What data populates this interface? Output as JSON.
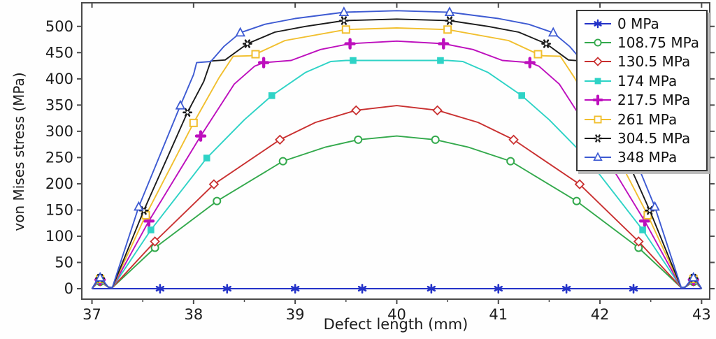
{
  "chart_data": {
    "type": "line",
    "title": "",
    "xlabel": "Defect length (mm)",
    "ylabel": "von Mises stress (MPa)",
    "xlim": [
      36.9,
      43.08
    ],
    "ylim": [
      -20,
      545
    ],
    "x_ticks": [
      37,
      38,
      39,
      40,
      41,
      42,
      43
    ],
    "x_minor_ticks": [
      37.5,
      38.5,
      39.5,
      40.5,
      41.5,
      42.5
    ],
    "y_ticks": [
      0,
      50,
      100,
      150,
      200,
      250,
      300,
      350,
      400,
      450,
      500
    ],
    "grid": false,
    "legend_position": "upper-right",
    "axis_color": "#4a4a4a",
    "series": [
      {
        "name": "0 MPa",
        "color": "#2433c8",
        "marker": "asterisk",
        "line": [
          [
            37.0,
            0
          ],
          [
            43.0,
            0
          ]
        ],
        "markers": [
          [
            37.67,
            0
          ],
          [
            38.33,
            0
          ],
          [
            39.0,
            0
          ],
          [
            39.66,
            0
          ],
          [
            40.34,
            0
          ],
          [
            41.0,
            0
          ],
          [
            41.67,
            0
          ],
          [
            42.33,
            0
          ]
        ]
      },
      {
        "name": "108.75 MPa",
        "color": "#33a94c",
        "marker": "circle-open",
        "line": [
          [
            37.0,
            0
          ],
          [
            37.04,
            8
          ],
          [
            37.08,
            13
          ],
          [
            37.12,
            8
          ],
          [
            37.16,
            3
          ],
          [
            37.2,
            2
          ],
          [
            37.62,
            78
          ],
          [
            38.23,
            167
          ],
          [
            38.88,
            243
          ],
          [
            39.3,
            270
          ],
          [
            39.62,
            284
          ],
          [
            40.0,
            291
          ],
          [
            40.38,
            284
          ],
          [
            40.7,
            270
          ],
          [
            41.12,
            243
          ],
          [
            41.77,
            167
          ],
          [
            42.38,
            78
          ],
          [
            42.8,
            2
          ],
          [
            42.84,
            3
          ],
          [
            42.88,
            8
          ],
          [
            42.92,
            13
          ],
          [
            42.96,
            8
          ],
          [
            43.0,
            0
          ]
        ],
        "markers": [
          [
            37.08,
            13
          ],
          [
            37.62,
            78
          ],
          [
            38.23,
            167
          ],
          [
            38.88,
            243
          ],
          [
            39.62,
            284
          ],
          [
            40.38,
            284
          ],
          [
            41.12,
            243
          ],
          [
            41.77,
            167
          ],
          [
            42.38,
            78
          ],
          [
            42.92,
            13
          ]
        ]
      },
      {
        "name": "130.5 MPa",
        "color": "#c93030",
        "marker": "diamond-open",
        "line": [
          [
            37.0,
            0
          ],
          [
            37.04,
            8.5
          ],
          [
            37.08,
            14
          ],
          [
            37.12,
            8.5
          ],
          [
            37.16,
            3
          ],
          [
            37.2,
            2
          ],
          [
            37.62,
            90
          ],
          [
            38.2,
            199
          ],
          [
            38.85,
            284
          ],
          [
            39.2,
            317
          ],
          [
            39.6,
            340
          ],
          [
            40.0,
            349
          ],
          [
            40.4,
            340
          ],
          [
            40.8,
            317
          ],
          [
            41.15,
            284
          ],
          [
            41.8,
            199
          ],
          [
            42.38,
            90
          ],
          [
            42.8,
            2
          ],
          [
            42.84,
            3
          ],
          [
            42.88,
            8.5
          ],
          [
            42.92,
            14
          ],
          [
            42.96,
            8.5
          ],
          [
            43.0,
            0
          ]
        ],
        "markers": [
          [
            37.08,
            14
          ],
          [
            37.62,
            90
          ],
          [
            38.2,
            199
          ],
          [
            38.85,
            284
          ],
          [
            39.6,
            340
          ],
          [
            40.4,
            340
          ],
          [
            41.15,
            284
          ],
          [
            41.8,
            199
          ],
          [
            42.38,
            90
          ],
          [
            42.92,
            14
          ]
        ]
      },
      {
        "name": "174 MPa",
        "color": "#2ed3c6",
        "marker": "square-filled",
        "line": [
          [
            37.0,
            0
          ],
          [
            37.04,
            9
          ],
          [
            37.08,
            15.5
          ],
          [
            37.12,
            9
          ],
          [
            37.16,
            3
          ],
          [
            37.2,
            2
          ],
          [
            37.58,
            112
          ],
          [
            38.13,
            249
          ],
          [
            38.5,
            322
          ],
          [
            38.77,
            368
          ],
          [
            39.1,
            412
          ],
          [
            39.35,
            433
          ],
          [
            39.5,
            435
          ],
          [
            40.5,
            435
          ],
          [
            40.65,
            433
          ],
          [
            40.9,
            412
          ],
          [
            41.23,
            368
          ],
          [
            41.5,
            322
          ],
          [
            41.87,
            249
          ],
          [
            42.42,
            112
          ],
          [
            42.8,
            2
          ],
          [
            42.84,
            3
          ],
          [
            42.88,
            9
          ],
          [
            42.92,
            15.5
          ],
          [
            42.96,
            9
          ],
          [
            43.0,
            0
          ]
        ],
        "markers": [
          [
            37.08,
            15.5
          ],
          [
            37.58,
            112
          ],
          [
            38.13,
            249
          ],
          [
            38.77,
            368
          ],
          [
            39.57,
            435
          ],
          [
            40.43,
            435
          ],
          [
            41.23,
            368
          ],
          [
            41.87,
            249
          ],
          [
            42.42,
            112
          ],
          [
            42.92,
            15.5
          ]
        ]
      },
      {
        "name": "217.5 MPa",
        "color": "#bd0fbd",
        "marker": "plus-filled",
        "line": [
          [
            37.0,
            0
          ],
          [
            37.04,
            10
          ],
          [
            37.08,
            17
          ],
          [
            37.12,
            10
          ],
          [
            37.16,
            3
          ],
          [
            37.2,
            2
          ],
          [
            37.56,
            129
          ],
          [
            38.07,
            291
          ],
          [
            38.4,
            390
          ],
          [
            38.6,
            424
          ],
          [
            38.69,
            431
          ],
          [
            38.96,
            435
          ],
          [
            39.25,
            456
          ],
          [
            39.54,
            467
          ],
          [
            40.0,
            472
          ],
          [
            40.46,
            467
          ],
          [
            40.75,
            456
          ],
          [
            41.04,
            435
          ],
          [
            41.31,
            431
          ],
          [
            41.4,
            424
          ],
          [
            41.6,
            390
          ],
          [
            41.93,
            291
          ],
          [
            42.44,
            129
          ],
          [
            42.8,
            2
          ],
          [
            42.84,
            3
          ],
          [
            42.88,
            10
          ],
          [
            42.92,
            17
          ],
          [
            42.96,
            10
          ],
          [
            43.0,
            0
          ]
        ],
        "markers": [
          [
            37.08,
            17
          ],
          [
            37.56,
            129
          ],
          [
            38.07,
            291
          ],
          [
            38.69,
            431
          ],
          [
            39.54,
            467
          ],
          [
            40.46,
            467
          ],
          [
            41.31,
            431
          ],
          [
            41.93,
            291
          ],
          [
            42.44,
            129
          ],
          [
            42.92,
            17
          ]
        ]
      },
      {
        "name": "261 MPa",
        "color": "#f1bf2e",
        "marker": "square-open",
        "line": [
          [
            37.0,
            0
          ],
          [
            37.04,
            11
          ],
          [
            37.08,
            18.5
          ],
          [
            37.12,
            11
          ],
          [
            37.16,
            3
          ],
          [
            37.2,
            2
          ],
          [
            37.53,
            140
          ],
          [
            38.0,
            316
          ],
          [
            38.25,
            402
          ],
          [
            38.39,
            443
          ],
          [
            38.56,
            444
          ],
          [
            38.61,
            447
          ],
          [
            38.9,
            473
          ],
          [
            39.5,
            494
          ],
          [
            40.0,
            497
          ],
          [
            40.5,
            494
          ],
          [
            41.1,
            473
          ],
          [
            41.39,
            447
          ],
          [
            41.44,
            444
          ],
          [
            41.61,
            443
          ],
          [
            41.75,
            402
          ],
          [
            42.0,
            316
          ],
          [
            42.47,
            140
          ],
          [
            42.8,
            2
          ],
          [
            42.84,
            3
          ],
          [
            42.88,
            11
          ],
          [
            42.92,
            18.5
          ],
          [
            42.96,
            11
          ],
          [
            43.0,
            0
          ]
        ],
        "markers": [
          [
            37.08,
            18.5
          ],
          [
            37.53,
            140
          ],
          [
            38.0,
            316
          ],
          [
            38.61,
            447
          ],
          [
            39.5,
            494
          ],
          [
            40.5,
            494
          ],
          [
            41.39,
            447
          ],
          [
            42.0,
            316
          ],
          [
            42.47,
            140
          ],
          [
            42.92,
            18.5
          ]
        ]
      },
      {
        "name": "304.5 MPa",
        "color": "#1b1b1b",
        "marker": "asterisk-dot",
        "line": [
          [
            37.0,
            0
          ],
          [
            37.04,
            12
          ],
          [
            37.08,
            20
          ],
          [
            37.12,
            12
          ],
          [
            37.16,
            3
          ],
          [
            37.2,
            2
          ],
          [
            37.51,
            149
          ],
          [
            37.94,
            336
          ],
          [
            38.1,
            395
          ],
          [
            38.17,
            434
          ],
          [
            38.31,
            436
          ],
          [
            38.53,
            467
          ],
          [
            38.8,
            489
          ],
          [
            39.1,
            500
          ],
          [
            39.48,
            511
          ],
          [
            40.0,
            514
          ],
          [
            40.52,
            511
          ],
          [
            40.9,
            500
          ],
          [
            41.2,
            489
          ],
          [
            41.47,
            467
          ],
          [
            41.69,
            436
          ],
          [
            41.83,
            434
          ],
          [
            41.9,
            395
          ],
          [
            42.06,
            336
          ],
          [
            42.49,
            149
          ],
          [
            42.8,
            2
          ],
          [
            42.84,
            3
          ],
          [
            42.88,
            12
          ],
          [
            42.92,
            20
          ],
          [
            42.96,
            12
          ],
          [
            43.0,
            0
          ]
        ],
        "markers": [
          [
            37.08,
            20
          ],
          [
            37.51,
            149
          ],
          [
            37.94,
            336
          ],
          [
            38.53,
            467
          ],
          [
            39.48,
            511
          ],
          [
            40.52,
            511
          ],
          [
            41.47,
            467
          ],
          [
            42.06,
            336
          ],
          [
            42.49,
            149
          ],
          [
            42.92,
            20
          ]
        ]
      },
      {
        "name": "348 MPa",
        "color": "#3d5ad2",
        "marker": "triangle-open",
        "line": [
          [
            37.0,
            0
          ],
          [
            37.04,
            13
          ],
          [
            37.08,
            21
          ],
          [
            37.12,
            13
          ],
          [
            37.16,
            3
          ],
          [
            37.2,
            2
          ],
          [
            37.46,
            156
          ],
          [
            37.87,
            349
          ],
          [
            38.0,
            408
          ],
          [
            38.03,
            431
          ],
          [
            38.17,
            433
          ],
          [
            38.3,
            462
          ],
          [
            38.46,
            488
          ],
          [
            38.7,
            504
          ],
          [
            39.0,
            515
          ],
          [
            39.48,
            527
          ],
          [
            40.0,
            530
          ],
          [
            40.52,
            527
          ],
          [
            41.0,
            515
          ],
          [
            41.3,
            504
          ],
          [
            41.54,
            488
          ],
          [
            41.7,
            462
          ],
          [
            41.83,
            433
          ],
          [
            41.97,
            431
          ],
          [
            42.0,
            408
          ],
          [
            42.13,
            349
          ],
          [
            42.54,
            156
          ],
          [
            42.8,
            2
          ],
          [
            42.84,
            3
          ],
          [
            42.88,
            13
          ],
          [
            42.92,
            21
          ],
          [
            42.96,
            13
          ],
          [
            43.0,
            0
          ]
        ],
        "markers": [
          [
            37.08,
            21
          ],
          [
            37.46,
            156
          ],
          [
            37.87,
            349
          ],
          [
            38.46,
            488
          ],
          [
            39.48,
            527
          ],
          [
            40.52,
            527
          ],
          [
            41.54,
            488
          ],
          [
            42.13,
            349
          ],
          [
            42.54,
            156
          ],
          [
            42.92,
            21
          ]
        ]
      }
    ]
  }
}
